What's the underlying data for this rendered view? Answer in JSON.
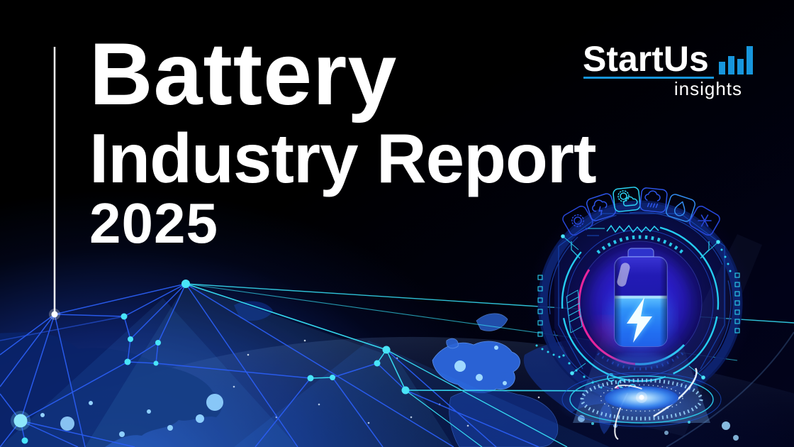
{
  "page": {
    "title": "Battery Industry Report 2025"
  },
  "hero": {
    "line1": "Battery",
    "line2": "Industry Report",
    "line3": "2025",
    "text_color": "#ffffff"
  },
  "brand": {
    "name": "StartUs",
    "tagline": "insights",
    "accent": "#1796dc",
    "chart_bars": [
      18,
      26,
      22,
      40
    ]
  },
  "illustration": {
    "name": "battery-hologram",
    "battery_level_percent": 55,
    "weather_icons": [
      "sun",
      "thunderstorm",
      "partly-cloudy",
      "rain",
      "droplet",
      "snowflake"
    ],
    "colors": {
      "cyan": "#2bd3f2",
      "blue": "#2a5df2",
      "magenta": "#f0269a",
      "glow_purple": "#2f1fd8",
      "map_glow": "#2458cf"
    }
  }
}
